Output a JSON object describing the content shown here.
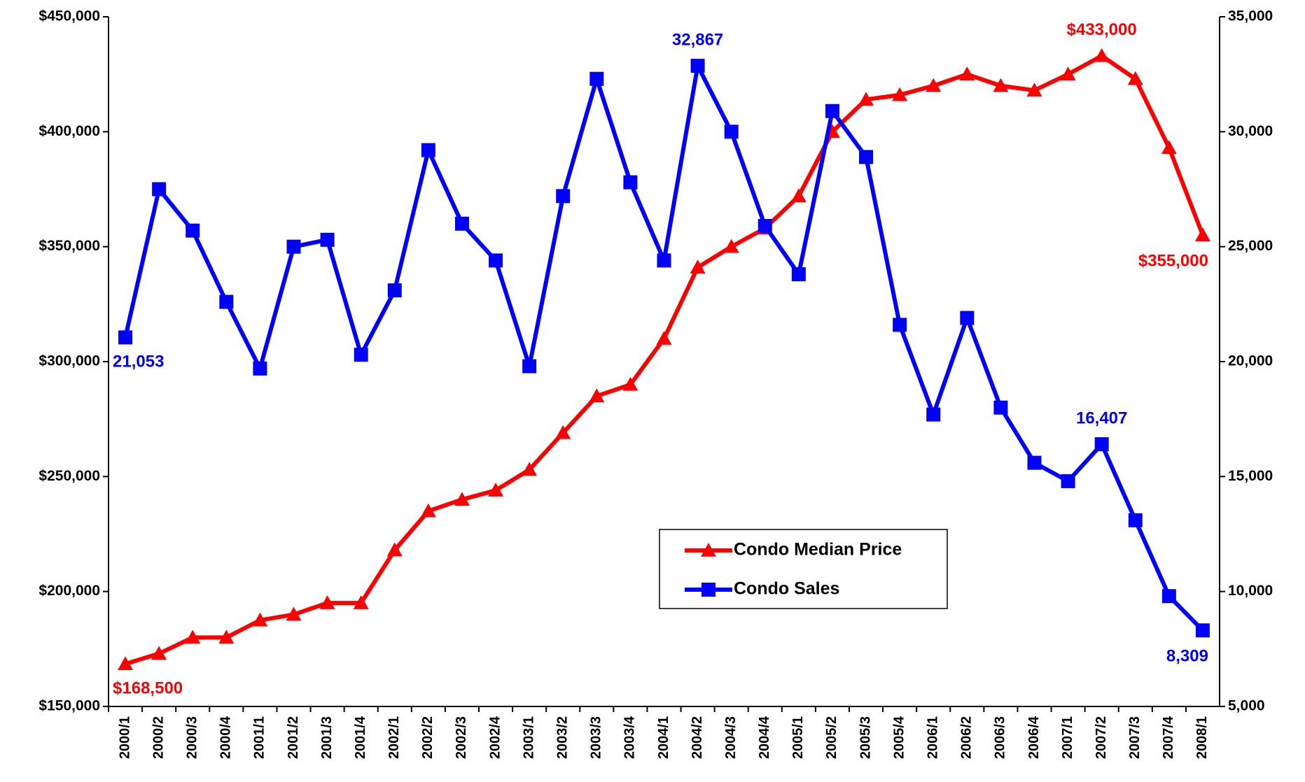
{
  "chart_data": {
    "type": "line",
    "categories": [
      "2000/1",
      "2000/2",
      "2000/3",
      "2000/4",
      "2001/1",
      "2001/2",
      "2001/3",
      "2001/4",
      "2002/1",
      "2002/2",
      "2002/3",
      "2002/4",
      "2003/1",
      "2003/2",
      "2003/3",
      "2003/4",
      "2004/1",
      "2004/2",
      "2004/3",
      "2004/4",
      "2005/1",
      "2005/2",
      "2005/3",
      "2005/4",
      "2006/1",
      "2006/2",
      "2006/3",
      "2006/4",
      "2007/1",
      "2007/2",
      "2007/3",
      "2007/4",
      "2008/1"
    ],
    "series": [
      {
        "name": "Condo Median Price",
        "color": "#ff0000",
        "marker": "triangle",
        "axis": "y",
        "values": [
          168500,
          173000,
          180000,
          180000,
          187500,
          190000,
          195000,
          195000,
          218000,
          235000,
          240000,
          244000,
          253000,
          269000,
          285000,
          290000,
          310000,
          341000,
          350000,
          358000,
          372000,
          400000,
          414000,
          416000,
          420000,
          425000,
          420000,
          418000,
          425000,
          433000,
          423000,
          393000,
          355000
        ],
        "value_labels": [
          "$168,500",
          null,
          null,
          null,
          null,
          null,
          null,
          null,
          null,
          null,
          null,
          null,
          null,
          null,
          null,
          null,
          null,
          null,
          null,
          null,
          null,
          null,
          null,
          null,
          null,
          null,
          null,
          null,
          null,
          "$433,000",
          null,
          null,
          "$355,000"
        ]
      },
      {
        "name": "Condo Sales",
        "color": "#0000ff",
        "marker": "square",
        "axis": "y2",
        "values": [
          21053,
          27500,
          25700,
          22600,
          19700,
          25000,
          25300,
          20300,
          23100,
          29200,
          26000,
          24400,
          19800,
          27200,
          32300,
          27800,
          24400,
          32867,
          30000,
          25900,
          23800,
          30900,
          28900,
          21600,
          17700,
          21900,
          18000,
          15600,
          14800,
          16407,
          13100,
          9800,
          8309
        ],
        "value_labels": [
          "21,053",
          null,
          null,
          null,
          null,
          null,
          null,
          null,
          null,
          null,
          null,
          null,
          null,
          null,
          null,
          null,
          null,
          "32,867",
          null,
          null,
          null,
          null,
          null,
          null,
          null,
          null,
          null,
          null,
          null,
          "16,407",
          null,
          null,
          "8,309"
        ]
      }
    ],
    "ylim": [
      150000,
      450000
    ],
    "yticks": [
      {
        "value": 150000,
        "label": "$150,000"
      },
      {
        "value": 200000,
        "label": "$200,000"
      },
      {
        "value": 250000,
        "label": "$250,000"
      },
      {
        "value": 300000,
        "label": "$300,000"
      },
      {
        "value": 350000,
        "label": "$350,000"
      },
      {
        "value": 400000,
        "label": "$400,000"
      },
      {
        "value": 450000,
        "label": "$450,000"
      }
    ],
    "y2lim": [
      5000,
      35000
    ],
    "y2ticks": [
      {
        "value": 5000,
        "label": "5,000"
      },
      {
        "value": 10000,
        "label": "10,000"
      },
      {
        "value": 15000,
        "label": "15,000"
      },
      {
        "value": 20000,
        "label": "20,000"
      },
      {
        "value": 25000,
        "label": "25,000"
      },
      {
        "value": 30000,
        "label": "30,000"
      },
      {
        "value": 35000,
        "label": "35,000"
      }
    ],
    "grid": false
  }
}
